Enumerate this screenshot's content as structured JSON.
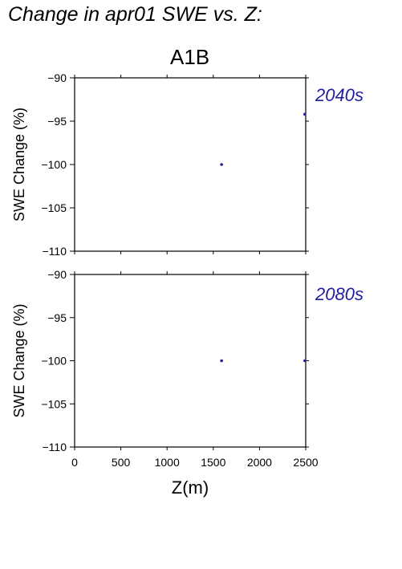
{
  "figure": {
    "title": "Change in apr01 SWE vs. Z:",
    "scenario": "A1B",
    "xlabel": "Z(m)"
  },
  "chart_data": [
    {
      "type": "scatter",
      "panel_label": "2040s",
      "ylabel": "SWE Change (%)",
      "xlabel": "Z(m)",
      "xlim": [
        0,
        2500
      ],
      "ylim": [
        -110,
        -90
      ],
      "xticks": [
        0,
        500,
        1000,
        1500,
        2000,
        2500
      ],
      "yticks": [
        -110,
        -105,
        -100,
        -95,
        -90
      ],
      "x_tick_labels_shown": false,
      "grid": false,
      "color": "#1f1f9e",
      "series": [
        {
          "x": [
            1590,
            2490
          ],
          "y": [
            -100,
            -94.2
          ]
        }
      ]
    },
    {
      "type": "scatter",
      "panel_label": "2080s",
      "ylabel": "SWE Change (%)",
      "xlabel": "Z(m)",
      "xlim": [
        0,
        2500
      ],
      "ylim": [
        -110,
        -90
      ],
      "xticks": [
        0,
        500,
        1000,
        1500,
        2000,
        2500
      ],
      "yticks": [
        -110,
        -105,
        -100,
        -95,
        -90
      ],
      "x_tick_labels_shown": true,
      "grid": false,
      "color": "#1f1f9e",
      "series": [
        {
          "x": [
            1590,
            2490
          ],
          "y": [
            -100,
            -100
          ]
        }
      ]
    }
  ]
}
